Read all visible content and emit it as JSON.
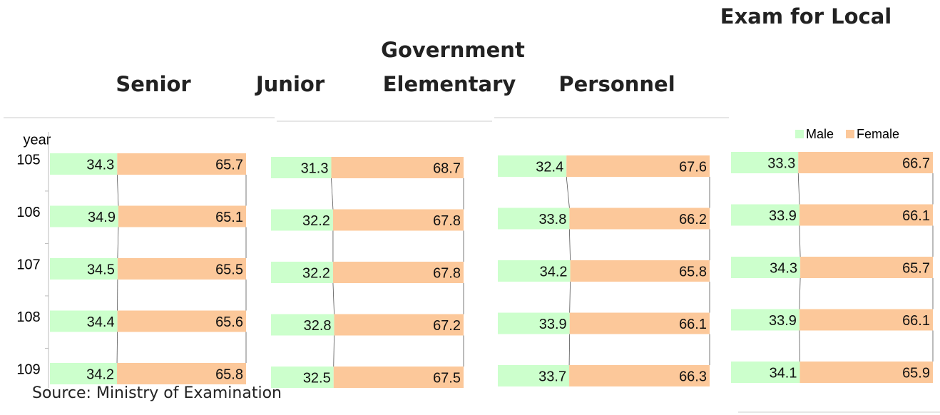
{
  "headings": [
    "Senior",
    "Junior",
    "Government",
    "Elementary",
    "Personnel",
    "Exam for Local"
  ],
  "source": "Source: Ministry of Examination",
  "chart_data": [
    {
      "type": "stacked-bar",
      "y_label": "year",
      "categories": [
        105,
        106,
        107,
        108,
        109
      ],
      "xlim": [
        0,
        100
      ],
      "series": [
        {
          "color": "#ccffcc",
          "values": [
            34.3,
            34.9,
            34.5,
            34.4,
            34.2
          ]
        },
        {
          "color": "#fcc89a",
          "values": [
            65.7,
            65.1,
            65.5,
            65.6,
            65.8
          ]
        }
      ]
    },
    {
      "type": "stacked-bar",
      "categories": [
        null,
        null,
        null,
        null,
        null
      ],
      "xlim": [
        0,
        100
      ],
      "series": [
        {
          "color": "#ccffcc",
          "values": [
            31.3,
            32.2,
            32.2,
            32.8,
            32.5
          ]
        },
        {
          "color": "#fcc89a",
          "values": [
            68.7,
            67.8,
            67.8,
            67.2,
            67.5
          ]
        }
      ]
    },
    {
      "type": "stacked-bar",
      "categories": [
        null,
        null,
        null,
        null,
        null
      ],
      "xlim": [
        0,
        100
      ],
      "series": [
        {
          "color": "#ccffcc",
          "values": [
            32.4,
            33.8,
            34.2,
            33.9,
            33.7
          ]
        },
        {
          "color": "#fcc89a",
          "values": [
            67.6,
            66.2,
            65.8,
            66.1,
            66.3
          ]
        }
      ]
    },
    {
      "type": "stacked-bar",
      "categories": [
        null,
        null,
        null,
        null,
        null
      ],
      "xlim": [
        0,
        100
      ],
      "legend": "top",
      "series": [
        {
          "name": "Male",
          "color": "#ccffcc",
          "values": [
            33.3,
            33.9,
            34.3,
            33.9,
            34.1
          ]
        },
        {
          "name": "Female",
          "color": "#fcc89a",
          "values": [
            66.7,
            66.1,
            65.7,
            66.1,
            65.9
          ]
        }
      ]
    }
  ]
}
